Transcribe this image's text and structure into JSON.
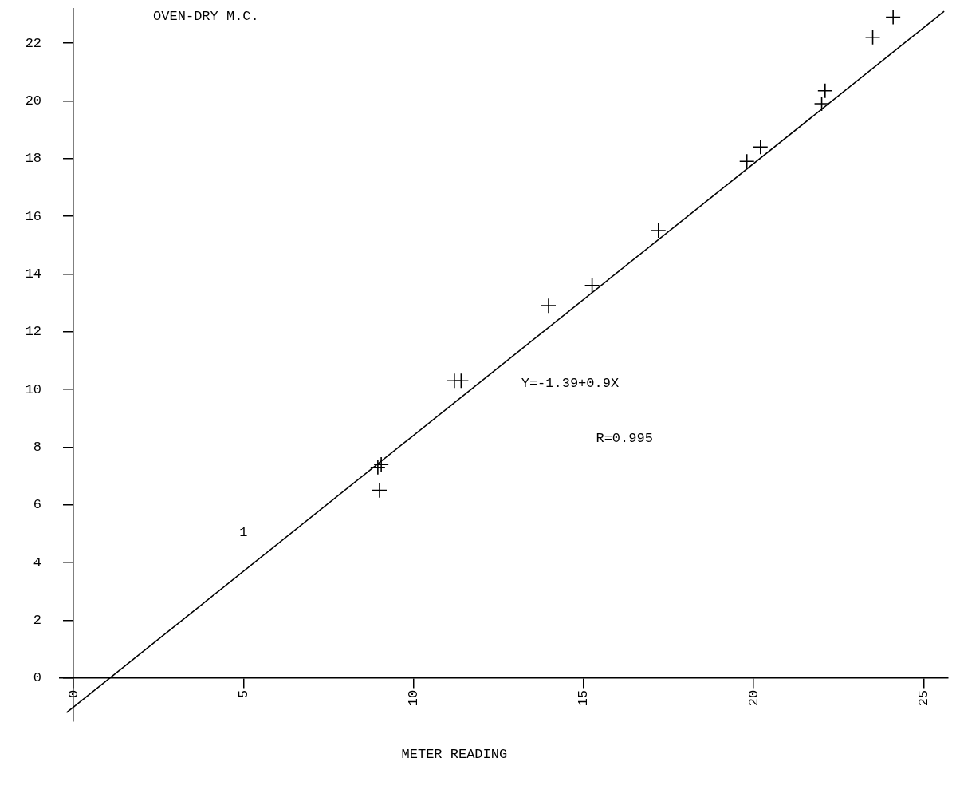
{
  "chart_data": {
    "type": "scatter",
    "ylabel": "OVEN-DRY M.C.",
    "xlabel": "METER READING",
    "annotations": [
      "Y=-1.39+0.9X",
      "R=0.995",
      "1"
    ],
    "xlim": [
      -0.4,
      25.7
    ],
    "ylim": [
      -1.5,
      23.2
    ],
    "xticks": [
      0,
      5,
      10,
      15,
      20,
      25
    ],
    "yticks": [
      0,
      2,
      4,
      6,
      8,
      10,
      12,
      14,
      16,
      18,
      20,
      22
    ],
    "grid": false,
    "legend": false,
    "marker": "cross",
    "series": [
      {
        "type": "scatter",
        "color": "#000000",
        "x": [
          9.0,
          8.95,
          9.05,
          11.2,
          11.4,
          13.97,
          15.25,
          17.2,
          19.8,
          20.2,
          22.0,
          22.1,
          23.5,
          24.1
        ],
        "values": [
          6.5,
          7.3,
          7.4,
          10.3,
          10.3,
          12.9,
          13.6,
          15.5,
          17.9,
          18.4,
          19.9,
          20.35,
          22.2,
          22.9
        ]
      },
      {
        "type": "line",
        "color": "#000000",
        "line_style": "solid",
        "marker": "none",
        "x": [
          -0.2,
          25.6
        ],
        "values": [
          -1.2,
          23.1
        ]
      }
    ]
  }
}
